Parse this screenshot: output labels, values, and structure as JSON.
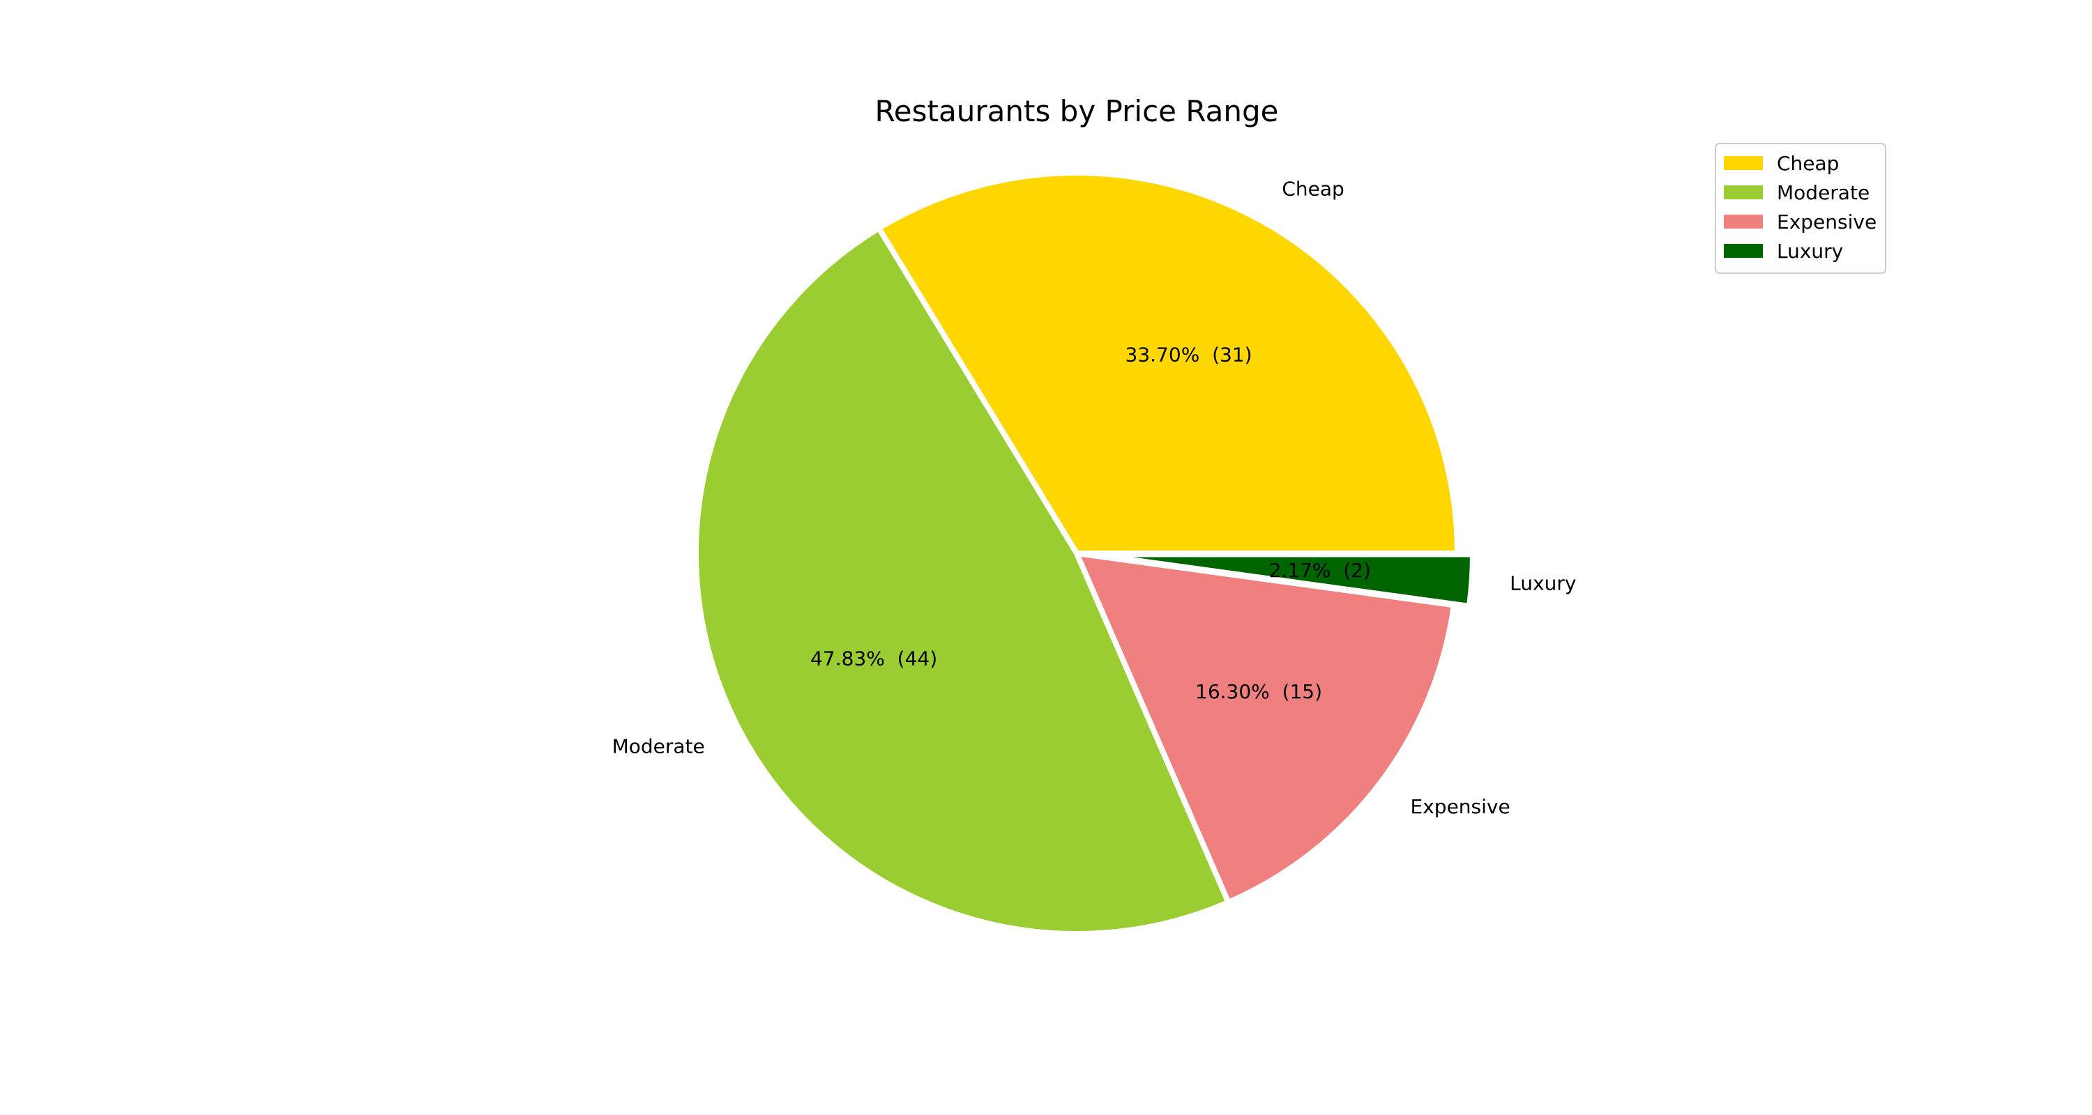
{
  "chart_data": {
    "type": "pie",
    "title": "Restaurants by Price Range",
    "slices": [
      {
        "label": "Cheap",
        "value": 31,
        "percent_label": "33.70%  (31)",
        "color": "#ffd700",
        "explode": false
      },
      {
        "label": "Moderate",
        "value": 44,
        "percent_label": "47.83%  (44)",
        "color": "#9acd32",
        "explode": false
      },
      {
        "label": "Expensive",
        "value": 15,
        "percent_label": "16.30%  (15)",
        "color": "#f08080",
        "explode": false
      },
      {
        "label": "Luxury",
        "value": 2,
        "percent_label": "2.17%  (2)",
        "color": "#006400",
        "explode": true
      }
    ],
    "start_angle_deg": 0,
    "direction": "counterclockwise",
    "legend": {
      "placement": "top-right",
      "entries": [
        "Cheap",
        "Moderate",
        "Expensive",
        "Luxury"
      ]
    }
  }
}
